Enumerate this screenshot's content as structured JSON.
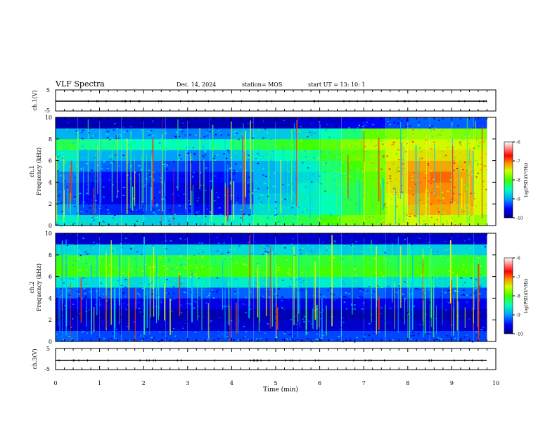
{
  "header": {
    "title": "VLF Spectra",
    "date": "Dec. 14, 2024",
    "station": "station= MOS",
    "start": "start  UT  =   13: 10: 1"
  },
  "chart_data": [
    {
      "id": "ch1-waveform",
      "type": "line",
      "ylabel": "ch.1(V)",
      "ylim": [
        -5,
        5
      ],
      "yticks": [
        "5",
        "-5"
      ],
      "series": [
        {
          "x": [
            0,
            9.8
          ],
          "y": [
            -0.5,
            -0.5
          ]
        }
      ]
    },
    {
      "id": "ch1-spectrogram",
      "type": "heatmap",
      "ylabel": "ch.1\nFrequency (kHz)",
      "ylim": [
        0,
        10
      ],
      "yticks": [
        "0",
        "2",
        "4",
        "6",
        "8",
        "10"
      ],
      "xlim": [
        0,
        10
      ],
      "x": [
        0,
        0.5,
        1,
        1.5,
        2,
        2.5,
        3,
        3.5,
        4,
        4.5,
        5,
        5.5,
        6,
        6.5,
        7,
        7.5,
        8,
        8.5,
        9,
        9.5
      ],
      "y": [
        0.5,
        1.5,
        2.5,
        3.5,
        4.5,
        5.5,
        6.5,
        7.5,
        8.5,
        9.5
      ],
      "values": [
        [
          -8.6,
          -8.7,
          -8.7,
          -8.7,
          -8.8,
          -8.8,
          -8.7,
          -8.6,
          -8.6,
          -8.4,
          -8.3,
          -8.2,
          -8.0,
          -7.8,
          -7.8,
          -7.6,
          -7.5,
          -7.5,
          -7.6,
          -7.7
        ],
        [
          -9.0,
          -9.3,
          -9.4,
          -9.4,
          -9.3,
          -9.4,
          -9.5,
          -9.5,
          -9.1,
          -8.7,
          -8.7,
          -8.6,
          -8.5,
          -8.2,
          -7.9,
          -7.6,
          -7.3,
          -7.2,
          -7.3,
          -7.5
        ],
        [
          -9.2,
          -9.5,
          -9.6,
          -9.6,
          -9.4,
          -9.6,
          -9.7,
          -9.6,
          -9.4,
          -8.8,
          -8.8,
          -8.6,
          -8.5,
          -8.2,
          -7.9,
          -7.5,
          -7.2,
          -7.1,
          -7.2,
          -7.5
        ],
        [
          -9.2,
          -9.5,
          -9.6,
          -9.6,
          -9.4,
          -9.6,
          -9.7,
          -9.6,
          -9.4,
          -8.9,
          -8.9,
          -8.6,
          -8.4,
          -8.2,
          -7.9,
          -7.4,
          -7.1,
          -7.1,
          -7.2,
          -7.5
        ],
        [
          -9.1,
          -9.4,
          -9.5,
          -9.5,
          -9.3,
          -9.5,
          -9.6,
          -9.5,
          -9.3,
          -8.9,
          -8.9,
          -8.7,
          -8.4,
          -8.1,
          -7.9,
          -7.4,
          -7.1,
          -7.0,
          -7.2,
          -7.5
        ],
        [
          -8.8,
          -9.1,
          -9.2,
          -9.2,
          -9.2,
          -9.3,
          -9.4,
          -9.3,
          -9.1,
          -8.9,
          -8.8,
          -8.6,
          -8.3,
          -8.0,
          -7.8,
          -7.4,
          -7.2,
          -7.2,
          -7.3,
          -7.5
        ],
        [
          -8.6,
          -8.9,
          -8.9,
          -8.9,
          -8.9,
          -9.0,
          -9.1,
          -9.0,
          -8.8,
          -8.6,
          -8.5,
          -8.4,
          -8.1,
          -7.9,
          -7.8,
          -7.5,
          -7.4,
          -7.4,
          -7.4,
          -7.5
        ],
        [
          -8.2,
          -8.4,
          -8.4,
          -8.5,
          -8.5,
          -8.5,
          -8.6,
          -8.5,
          -8.3,
          -8.2,
          -8.1,
          -8.0,
          -7.9,
          -7.8,
          -7.6,
          -7.5,
          -7.5,
          -7.5,
          -7.5,
          -7.6
        ],
        [
          -8.9,
          -9.0,
          -9.0,
          -9.0,
          -9.0,
          -9.1,
          -9.1,
          -9.1,
          -8.9,
          -8.8,
          -8.8,
          -8.7,
          -8.5,
          -8.3,
          -7.9,
          -7.8,
          -7.7,
          -7.7,
          -7.8,
          -7.8
        ],
        [
          -9.8,
          -9.8,
          -9.8,
          -9.8,
          -9.8,
          -9.8,
          -9.8,
          -9.8,
          -9.8,
          -9.8,
          -9.8,
          -9.7,
          -9.7,
          -9.6,
          -9.5,
          -9.3,
          -9.2,
          -9.2,
          -9.2,
          -9.3
        ]
      ]
    },
    {
      "id": "ch2-spectrogram",
      "type": "heatmap",
      "ylabel": "ch.2\nFrequency (kHz)",
      "ylim": [
        0,
        10
      ],
      "yticks": [
        "0",
        "2",
        "4",
        "6",
        "8",
        "10"
      ],
      "xlim": [
        0,
        10
      ],
      "x": [
        0,
        0.5,
        1,
        1.5,
        2,
        2.5,
        3,
        3.5,
        4,
        4.5,
        5,
        5.5,
        6,
        6.5,
        7,
        7.5,
        8,
        8.5,
        9,
        9.5
      ],
      "y": [
        0.5,
        1.5,
        2.5,
        3.5,
        4.5,
        5.5,
        6.5,
        7.5,
        8.5,
        9.5
      ],
      "values": [
        [
          -9.2,
          -9.3,
          -9.3,
          -9.3,
          -9.3,
          -9.3,
          -9.3,
          -9.3,
          -9.3,
          -9.3,
          -9.3,
          -9.3,
          -9.3,
          -9.3,
          -9.3,
          -9.3,
          -9.3,
          -9.3,
          -9.3,
          -9.3
        ],
        [
          -9.7,
          -9.7,
          -9.7,
          -9.7,
          -9.7,
          -9.7,
          -9.7,
          -9.7,
          -9.7,
          -9.7,
          -9.7,
          -9.7,
          -9.7,
          -9.7,
          -9.7,
          -9.7,
          -9.7,
          -9.7,
          -9.7,
          -9.7
        ],
        [
          -9.8,
          -9.8,
          -9.8,
          -9.8,
          -9.8,
          -9.8,
          -9.8,
          -9.8,
          -9.8,
          -9.8,
          -9.8,
          -9.8,
          -9.8,
          -9.8,
          -9.8,
          -9.8,
          -9.8,
          -9.8,
          -9.8,
          -9.8
        ],
        [
          -9.6,
          -9.6,
          -9.6,
          -9.6,
          -9.6,
          -9.6,
          -9.6,
          -9.6,
          -9.6,
          -9.6,
          -9.6,
          -9.6,
          -9.6,
          -9.6,
          -9.6,
          -9.6,
          -9.6,
          -9.6,
          -9.6,
          -9.6
        ],
        [
          -9.2,
          -9.3,
          -9.2,
          -9.3,
          -9.2,
          -9.3,
          -9.2,
          -9.3,
          -9.2,
          -9.3,
          -9.2,
          -9.3,
          -9.2,
          -9.3,
          -9.2,
          -9.3,
          -9.2,
          -9.3,
          -9.2,
          -9.3
        ],
        [
          -8.6,
          -8.7,
          -8.6,
          -8.7,
          -8.6,
          -8.7,
          -8.6,
          -8.7,
          -8.6,
          -8.7,
          -8.6,
          -8.7,
          -8.6,
          -8.7,
          -8.6,
          -8.7,
          -8.6,
          -8.7,
          -8.6,
          -8.7
        ],
        [
          -8.0,
          -8.1,
          -8.0,
          -8.1,
          -8.0,
          -8.1,
          -8.0,
          -8.1,
          -8.0,
          -8.1,
          -8.0,
          -8.1,
          -8.0,
          -8.1,
          -8.0,
          -8.1,
          -8.0,
          -8.1,
          -8.0,
          -8.1
        ],
        [
          -8.1,
          -8.2,
          -8.1,
          -8.2,
          -8.1,
          -8.2,
          -8.1,
          -8.2,
          -8.1,
          -8.2,
          -8.1,
          -8.2,
          -8.1,
          -8.2,
          -8.1,
          -8.2,
          -8.1,
          -8.2,
          -8.1,
          -8.2
        ],
        [
          -8.7,
          -8.8,
          -8.7,
          -8.8,
          -8.7,
          -8.8,
          -8.7,
          -8.8,
          -8.7,
          -8.8,
          -8.7,
          -8.8,
          -8.7,
          -8.8,
          -8.7,
          -8.8,
          -8.7,
          -8.8,
          -8.7,
          -8.8
        ],
        [
          -9.7,
          -9.7,
          -9.7,
          -9.7,
          -9.7,
          -9.7,
          -9.7,
          -9.7,
          -9.7,
          -9.7,
          -9.7,
          -9.7,
          -9.7,
          -9.7,
          -9.7,
          -9.7,
          -9.7,
          -9.7,
          -9.7,
          -9.7
        ]
      ]
    },
    {
      "id": "ch3-waveform",
      "type": "line",
      "ylabel": "ch.3(V)",
      "ylim": [
        -5,
        5
      ],
      "yticks": [
        "5",
        "-5"
      ],
      "xlim": [
        0,
        10
      ],
      "xlabel": "Time (min)",
      "xticks": [
        "0",
        "1",
        "2",
        "3",
        "4",
        "5",
        "6",
        "7",
        "8",
        "9",
        "10"
      ],
      "series": [
        {
          "x": [
            0,
            9.8
          ],
          "y": [
            -0.5,
            -0.5
          ]
        }
      ]
    }
  ],
  "colorbars": [
    {
      "label": "log(PSD)(V²/Hz)",
      "range": [
        -10,
        -6
      ],
      "ticks": [
        "-6",
        "-7",
        "-8",
        "-9",
        "-10"
      ],
      "stops": [
        "#000080",
        "#0000ff",
        "#00c0ff",
        "#00ff80",
        "#60ff00",
        "#ffff00",
        "#ff8000",
        "#ff0000",
        "#ff9090",
        "#ffffff"
      ]
    },
    {
      "label": "log(PSD)(V²/Hz)",
      "range": [
        -10,
        -6
      ],
      "ticks": [
        "-6",
        "-7",
        "-8",
        "-9",
        "-10"
      ],
      "stops": [
        "#000080",
        "#0000ff",
        "#00c0ff",
        "#00ff80",
        "#60ff00",
        "#ffff00",
        "#ff8000",
        "#ff0000",
        "#ff9090",
        "#ffffff"
      ]
    }
  ]
}
